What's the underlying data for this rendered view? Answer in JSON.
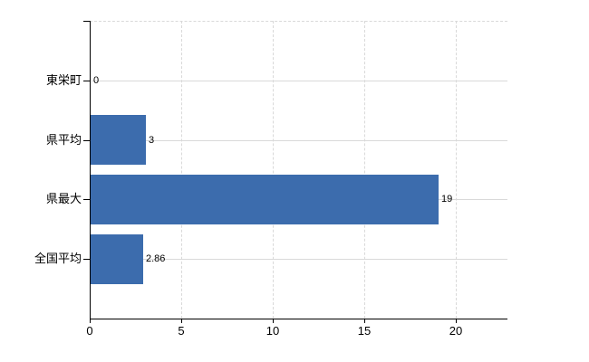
{
  "chart_data": {
    "type": "bar",
    "orientation": "horizontal",
    "title": "",
    "xlabel": "",
    "ylabel": "",
    "categories": [
      "東栄町",
      "県平均",
      "県最大",
      "全国平均"
    ],
    "values": [
      0,
      3,
      19,
      2.86
    ],
    "data_labels": [
      "0",
      "3",
      "19",
      "2.86"
    ],
    "x_ticks": [
      0,
      5,
      10,
      15,
      20
    ],
    "x_tick_labels": [
      "0",
      "5",
      "10",
      "15",
      "20"
    ],
    "xlim": [
      0,
      22.8
    ],
    "legend": null,
    "grid": {
      "vertical_gridlines": "dashed",
      "horizontal_gridlines": "solid",
      "top_border": "dashed"
    },
    "colors": {
      "bar": "#3c6cad",
      "grid": "#d9d9d9",
      "axis": "#000000",
      "text": "#000000",
      "background": "#ffffff"
    }
  }
}
